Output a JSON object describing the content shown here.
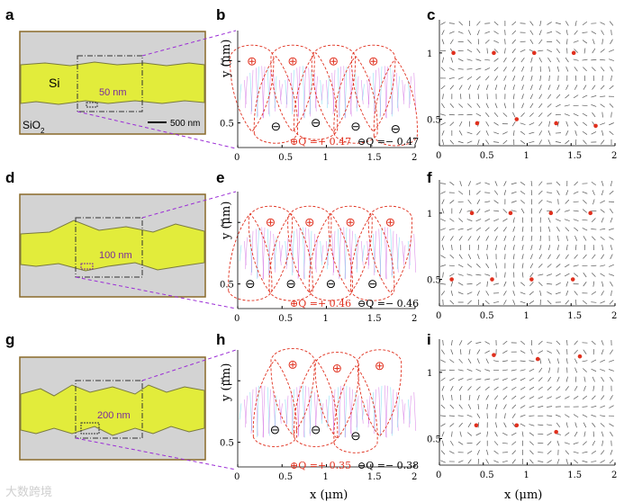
{
  "panel_labels": [
    "a",
    "b",
    "c",
    "d",
    "e",
    "f",
    "g",
    "h",
    "i"
  ],
  "panel_a": {
    "si_label": "Si",
    "sio2_label": "SiO",
    "sio2_sub": "2",
    "thickness": "50 nm",
    "scalebar": "500 nm"
  },
  "panel_d": {
    "thickness": "100 nm"
  },
  "panel_g": {
    "thickness": "200 nm"
  },
  "axes": {
    "y_label": "y (μm)",
    "x_label": "x (μm)",
    "x_ticks": [
      "0",
      "0.5",
      "1",
      "1.5",
      "2"
    ],
    "y_ticks": [
      "1",
      "0.5"
    ]
  },
  "legend_b": {
    "pos": "⊕Q =+ 0.47",
    "neg": "⊖Q =− 0.47"
  },
  "legend_e": {
    "pos": "⊕Q =+ 0.46",
    "neg": "⊖Q =− 0.46"
  },
  "legend_h": {
    "pos": "⊕Q =+ 0.35",
    "neg": "⊖Q =− 0.38"
  },
  "watermark": "大数跨境",
  "colors": {
    "si": "#e2ec3b",
    "sio2": "#d3d3d3",
    "border": "#8a6a2a",
    "dash": "#9b2dd6",
    "contour": "#e0301e",
    "charge": "#e0301e"
  },
  "chart_data": [
    {
      "type": "scatter",
      "title": "b",
      "xlabel": "",
      "ylabel": "y (μm)",
      "xlim": [
        0,
        2
      ],
      "ylim": [
        0.3,
        1.25
      ],
      "series": [
        {
          "name": "positive charges",
          "x": [
            0.16,
            0.62,
            1.08,
            1.53
          ],
          "y": [
            1.0,
            1.0,
            1.0,
            1.0
          ]
        },
        {
          "name": "negative charges",
          "x": [
            0.43,
            0.88,
            1.33,
            1.78
          ],
          "y": [
            0.47,
            0.5,
            0.47,
            0.45
          ]
        }
      ]
    },
    {
      "type": "scatter",
      "title": "e",
      "xlabel": "",
      "ylabel": "y (μm)",
      "xlim": [
        0,
        2
      ],
      "ylim": [
        0.3,
        1.25
      ],
      "series": [
        {
          "name": "positive charges",
          "x": [
            0.37,
            0.81,
            1.27,
            1.72
          ],
          "y": [
            1.0,
            1.0,
            1.0,
            1.0
          ]
        },
        {
          "name": "negative charges",
          "x": [
            0.14,
            0.6,
            1.05,
            1.52
          ],
          "y": [
            0.5,
            0.5,
            0.5,
            0.5
          ]
        }
      ]
    },
    {
      "type": "scatter",
      "title": "h",
      "xlabel": "x (μm)",
      "ylabel": "y (μm)",
      "xlim": [
        0,
        2
      ],
      "ylim": [
        0.3,
        1.25
      ],
      "series": [
        {
          "name": "positive charges",
          "x": [
            0.62,
            1.12,
            1.6
          ],
          "y": [
            1.13,
            1.1,
            1.12
          ]
        },
        {
          "name": "negative charges",
          "x": [
            0.42,
            0.88,
            1.33
          ],
          "y": [
            0.6,
            0.6,
            0.55
          ]
        }
      ]
    }
  ]
}
